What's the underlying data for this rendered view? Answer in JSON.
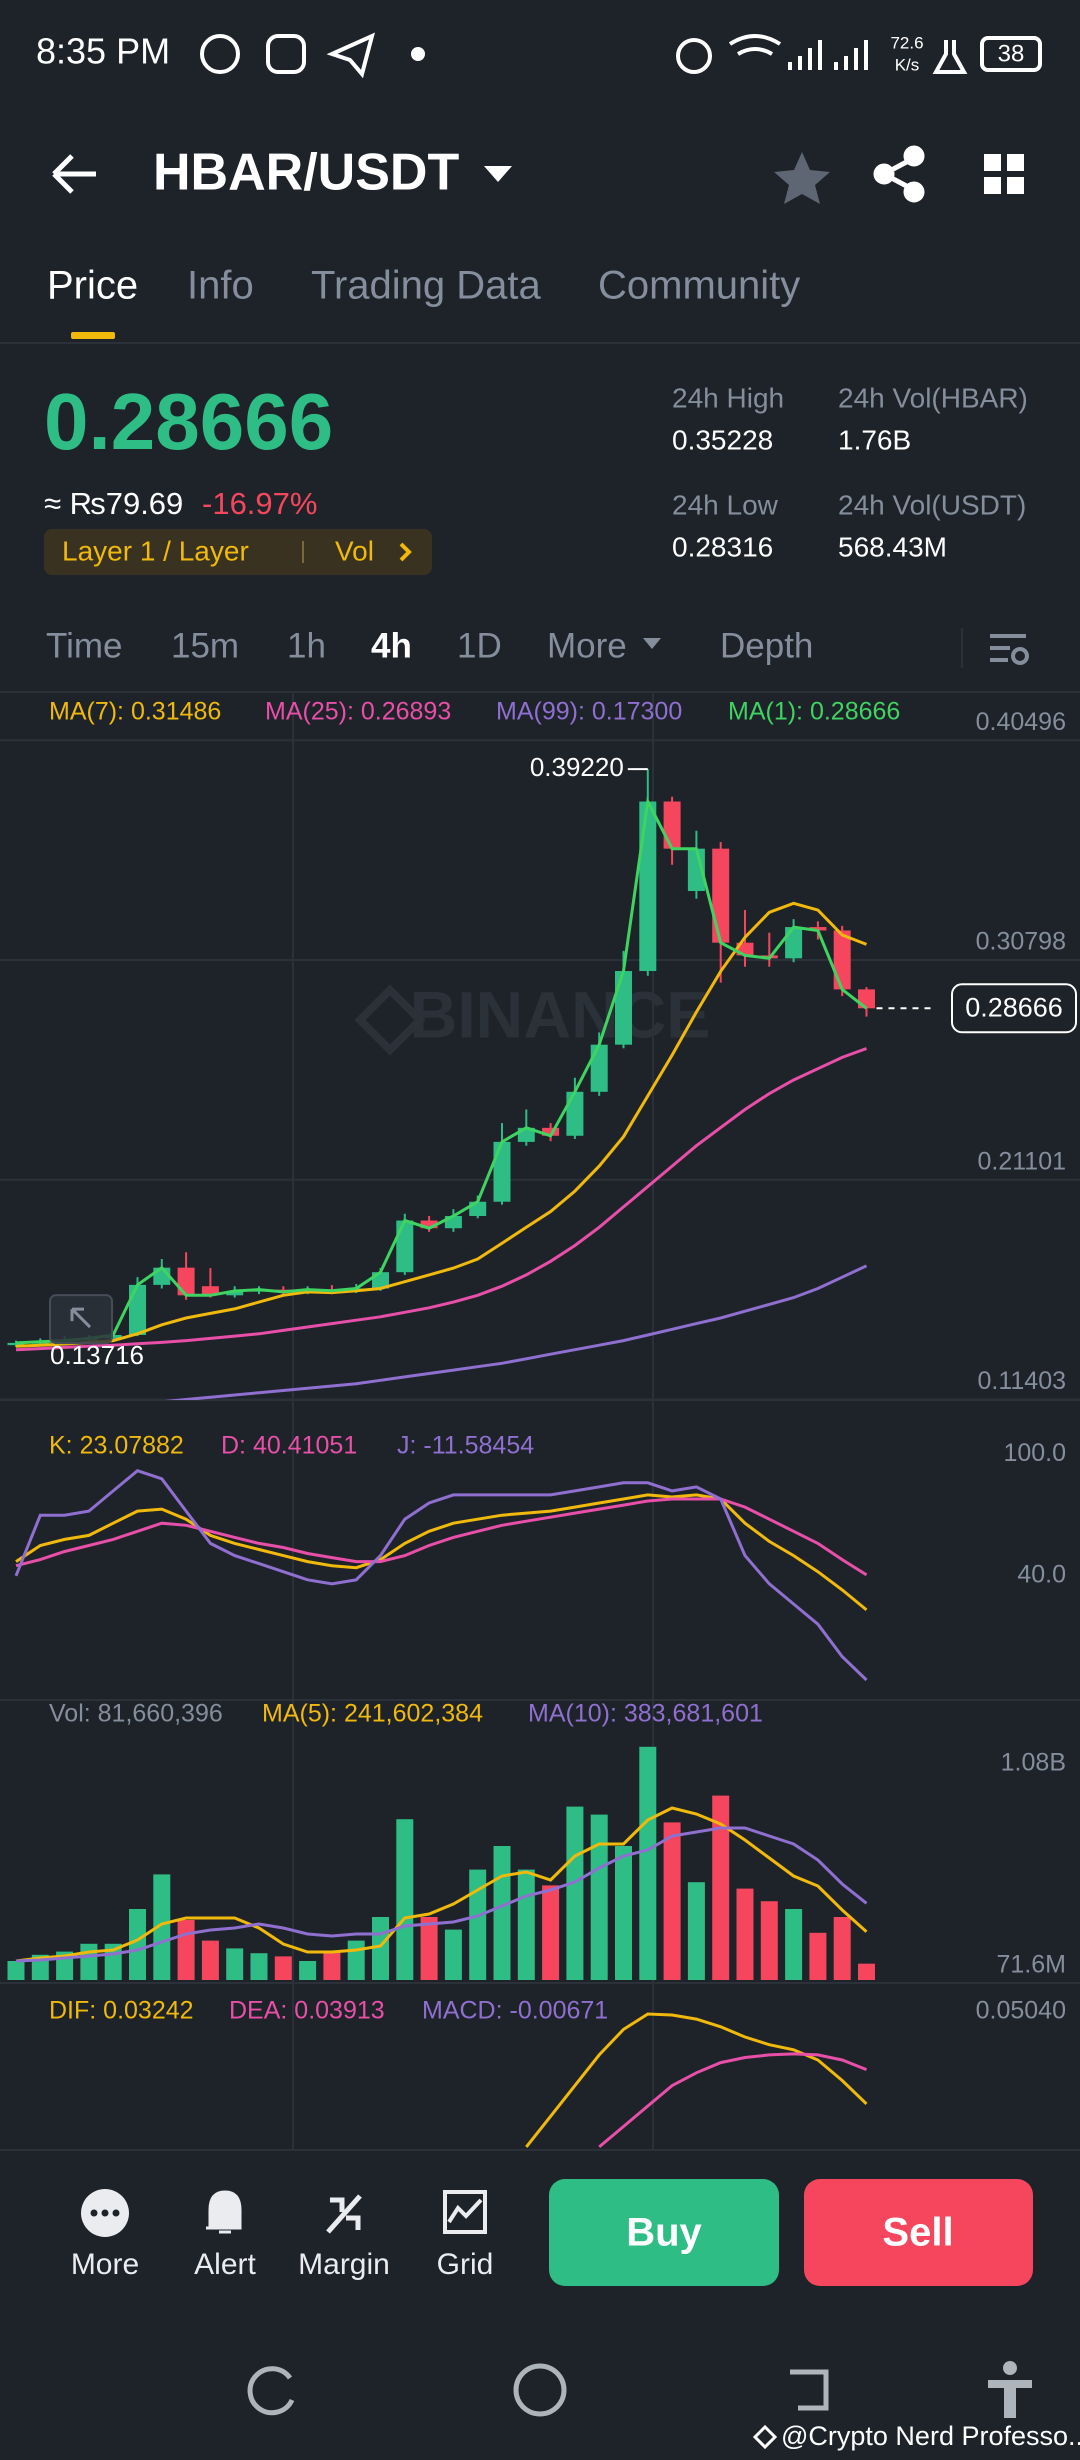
{
  "status_bar": {
    "time": "8:35 PM",
    "speed": "72.6",
    "speed_unit": "K/s",
    "battery": "38"
  },
  "header": {
    "pair": "HBAR/USDT"
  },
  "tabs": [
    "Price",
    "Info",
    "Trading Data",
    "Community"
  ],
  "ticker": {
    "price": "0.28666",
    "local_price": "≈ ₨79.69",
    "change": "-16.97%",
    "tag": "Layer 1 / Layer",
    "tag_vol": "Vol",
    "stats": [
      {
        "label": "24h High",
        "value": "0.35228"
      },
      {
        "label": "24h Vol(HBAR)",
        "value": "1.76B"
      },
      {
        "label": "24h Low",
        "value": "0.28316"
      },
      {
        "label": "24h Vol(USDT)",
        "value": "568.43M"
      }
    ]
  },
  "intervals": [
    "Time",
    "15m",
    "1h",
    "4h",
    "1D",
    "More",
    "Depth"
  ],
  "chart_data": [
    {
      "type": "candlestick",
      "watermark": "BINANCE",
      "up_color": "#2ebd85",
      "down_color": "#f6465d",
      "open": [
        0.138,
        0.139,
        0.1395,
        0.14,
        0.141,
        0.1425,
        0.1646,
        0.1722,
        0.164,
        0.16,
        0.1619,
        0.1625,
        0.1615,
        0.1625,
        0.162,
        0.163,
        0.1702,
        0.193,
        0.1896,
        0.195,
        0.2013,
        0.2277,
        0.2339,
        0.2304,
        0.2498,
        0.2706,
        0.3031,
        0.3779,
        0.3384,
        0.3571,
        0.3156,
        0.31,
        0.3087,
        0.3225,
        0.321,
        0.295
      ],
      "high": [
        0.14,
        0.141,
        0.142,
        0.1425,
        0.144,
        0.168,
        0.176,
        0.179,
        0.172,
        0.164,
        0.164,
        0.164,
        0.164,
        0.1645,
        0.165,
        0.172,
        0.196,
        0.195,
        0.198,
        0.204,
        0.236,
        0.242,
        0.236,
        0.256,
        0.276,
        0.312,
        0.3922,
        0.38,
        0.365,
        0.36,
        0.33,
        0.32,
        0.326,
        0.325,
        0.323,
        0.296
      ],
      "low": [
        0.13716,
        0.138,
        0.1385,
        0.139,
        0.14,
        0.142,
        0.163,
        0.158,
        0.159,
        0.159,
        0.1605,
        0.16,
        0.1605,
        0.1605,
        0.161,
        0.162,
        0.169,
        0.188,
        0.188,
        0.194,
        0.2,
        0.226,
        0.228,
        0.229,
        0.248,
        0.269,
        0.301,
        0.35,
        0.335,
        0.298,
        0.305,
        0.305,
        0.307,
        0.317,
        0.292,
        0.283
      ],
      "close": [
        0.139,
        0.1395,
        0.14,
        0.141,
        0.1425,
        0.1646,
        0.1722,
        0.16,
        0.16,
        0.1619,
        0.1625,
        0.1615,
        0.1625,
        0.162,
        0.163,
        0.1702,
        0.193,
        0.1896,
        0.195,
        0.2013,
        0.2277,
        0.2339,
        0.2304,
        0.2498,
        0.2706,
        0.3031,
        0.3779,
        0.3571,
        0.3571,
        0.3156,
        0.31,
        0.3087,
        0.3225,
        0.321,
        0.295,
        0.28666
      ],
      "series": [
        {
          "name": "MA(7): 0.31486",
          "color": "#f0b90b",
          "values": [
            0.1375,
            0.138,
            0.1385,
            0.1392,
            0.14,
            0.143,
            0.147,
            0.15,
            0.152,
            0.154,
            0.157,
            0.16,
            0.1615,
            0.1612,
            0.162,
            0.163,
            0.166,
            0.169,
            0.172,
            0.176,
            0.183,
            0.19,
            0.197,
            0.206,
            0.217,
            0.23,
            0.248,
            0.266,
            0.285,
            0.303,
            0.318,
            0.329,
            0.333,
            0.33,
            0.319,
            0.31486
          ]
        },
        {
          "name": "MA(25): 0.26893",
          "color": "#e84fa8",
          "values": [
            0.136,
            0.1365,
            0.137,
            0.1375,
            0.138,
            0.1386,
            0.1392,
            0.14,
            0.141,
            0.142,
            0.143,
            0.1445,
            0.146,
            0.1475,
            0.149,
            0.1505,
            0.1525,
            0.1545,
            0.157,
            0.16,
            0.164,
            0.169,
            0.175,
            0.182,
            0.19,
            0.199,
            0.208,
            0.217,
            0.226,
            0.234,
            0.242,
            0.249,
            0.255,
            0.26,
            0.265,
            0.26893
          ]
        },
        {
          "name": "MA(99): 0.17300",
          "color": "#8f6fd0",
          "values": [
            0.107,
            0.108,
            0.109,
            0.11,
            0.111,
            0.112,
            0.113,
            0.114,
            0.115,
            0.116,
            0.117,
            0.118,
            0.119,
            0.12,
            0.121,
            0.1225,
            0.124,
            0.1255,
            0.127,
            0.1285,
            0.13,
            0.132,
            0.134,
            0.136,
            0.138,
            0.14,
            0.1425,
            0.145,
            0.1475,
            0.15,
            0.153,
            0.156,
            0.159,
            0.163,
            0.168,
            0.173
          ]
        },
        {
          "name": "MA(1): 0.28666",
          "color": "#3fd462",
          "values": [
            0.139,
            0.1395,
            0.14,
            0.141,
            0.1425,
            0.1646,
            0.1722,
            0.16,
            0.16,
            0.1619,
            0.1625,
            0.1615,
            0.1625,
            0.162,
            0.163,
            0.1702,
            0.193,
            0.1896,
            0.195,
            0.2013,
            0.2277,
            0.2339,
            0.2304,
            0.2498,
            0.2706,
            0.3031,
            0.3779,
            0.3571,
            0.3571,
            0.3156,
            0.31,
            0.3087,
            0.3225,
            0.321,
            0.295,
            0.28666
          ]
        }
      ],
      "annotations": {
        "high": "0.39220",
        "low": "0.13716",
        "last": "0.28666"
      },
      "ylim": [
        0.1138,
        0.4227
      ],
      "yticks": [
        0.40496,
        0.30798,
        0.21101,
        0.11403
      ],
      "grid": true
    },
    {
      "type": "line",
      "series": [
        {
          "name": "K: 23.07882",
          "color": "#f0b90b",
          "values": [
            47,
            55,
            58,
            60,
            66,
            72,
            73,
            68,
            60,
            56,
            53,
            50,
            47,
            45,
            44,
            48,
            56,
            62,
            66,
            68,
            70,
            71,
            72,
            74,
            76,
            78,
            80,
            79,
            80,
            78,
            66,
            57,
            50,
            42,
            33,
            23.07882
          ]
        },
        {
          "name": "D: 40.41051",
          "color": "#e84fa8",
          "values": [
            45,
            48,
            52,
            55,
            58,
            62,
            66,
            65,
            62,
            59,
            56,
            54,
            51,
            49,
            47,
            47,
            50,
            55,
            59,
            62,
            65,
            67,
            69,
            71,
            73,
            75,
            77,
            78,
            78,
            78,
            74,
            68,
            62,
            56,
            48,
            40.41051
          ]
        },
        {
          "name": "J: -11.58454",
          "color": "#8f6fd0",
          "values": [
            40,
            70,
            70,
            72,
            82,
            92,
            88,
            72,
            56,
            50,
            46,
            42,
            38,
            36,
            38,
            50,
            68,
            76,
            80,
            80,
            80,
            80,
            80,
            82,
            84,
            86,
            86,
            82,
            84,
            78,
            50,
            36,
            26,
            16,
            0,
            -11.58454
          ]
        }
      ],
      "ylim": [
        -21.5,
        127
      ],
      "yticks": [
        {
          "value": 100,
          "label": "100.0"
        },
        {
          "value": 40,
          "label": "40.0"
        }
      ],
      "grid": false
    },
    {
      "type": "bar",
      "series": [
        {
          "name": "Vol: 81,660,396",
          "type": "bar",
          "color": "#848e9c",
          "values": [
            95,
            126,
            142,
            181,
            181,
            355,
            528,
            300,
            197,
            158,
            134,
            118,
            95,
            142,
            197,
            315,
            804,
            315,
            252,
            552,
            670,
            552,
            473,
            867,
            827,
            670,
            1166,
            788,
            489,
            922,
            457,
            394,
            355,
            236,
            315,
            81.660396
          ]
        },
        {
          "name": "MA(5): 241,602,384",
          "color": "#f0b90b",
          "values": [
            95,
            110,
            120,
            140,
            150,
            200,
            280,
            310,
            310,
            310,
            260,
            180,
            140,
            140,
            150,
            170,
            310,
            330,
            380,
            450,
            520,
            540,
            500,
            620,
            680,
            680,
            800,
            860,
            830,
            780,
            700,
            610,
            520,
            470,
            350,
            241.602384
          ]
        },
        {
          "name": "MA(10): 383,681,601",
          "color": "#8f6fd0",
          "values": [
            95,
            100,
            110,
            120,
            130,
            150,
            190,
            230,
            250,
            260,
            280,
            260,
            230,
            220,
            230,
            230,
            270,
            280,
            290,
            320,
            370,
            420,
            450,
            490,
            560,
            620,
            650,
            720,
            740,
            760,
            760,
            720,
            680,
            600,
            480,
            383.681601
          ]
        }
      ],
      "ylim": [
        0,
        1400
      ],
      "yticks": [
        {
          "value": 1080,
          "label": "1.08B"
        },
        {
          "value": 71.6,
          "label": "71.6M"
        }
      ],
      "grid": false
    },
    {
      "type": "line",
      "series": [
        {
          "name": "DIF: 0.03242",
          "color": "#f0b90b",
          "values": [
            null,
            null,
            null,
            null,
            null,
            null,
            null,
            null,
            null,
            null,
            null,
            null,
            null,
            null,
            null,
            null,
            null,
            null,
            null,
            null,
            null,
            0.024,
            0.03,
            0.036,
            0.042,
            0.047,
            0.05,
            0.0498,
            0.049,
            0.0475,
            0.0455,
            0.044,
            0.043,
            0.041,
            0.037,
            0.03242
          ]
        },
        {
          "name": "DEA: 0.03913",
          "color": "#e84fa8",
          "values": [
            null,
            null,
            null,
            null,
            null,
            null,
            null,
            null,
            null,
            null,
            null,
            null,
            null,
            null,
            null,
            null,
            null,
            null,
            null,
            null,
            null,
            null,
            null,
            null,
            0.024,
            0.028,
            0.032,
            0.036,
            0.0385,
            0.0405,
            0.0415,
            0.042,
            0.0422,
            0.042,
            0.041,
            0.03913
          ]
        },
        {
          "name": "MACD: -0.00671",
          "color": "#8f6fd0"
        }
      ],
      "ylim": [
        0.0234,
        0.0547
      ],
      "yticks": [
        {
          "value": 0.0504,
          "label": "0.05040"
        }
      ],
      "grid": false
    }
  ],
  "actions": [
    "More",
    "Alert",
    "Margin",
    "Grid"
  ],
  "buttons": {
    "buy": "Buy",
    "sell": "Sell"
  },
  "watermark": "@Crypto Nerd Professo..."
}
